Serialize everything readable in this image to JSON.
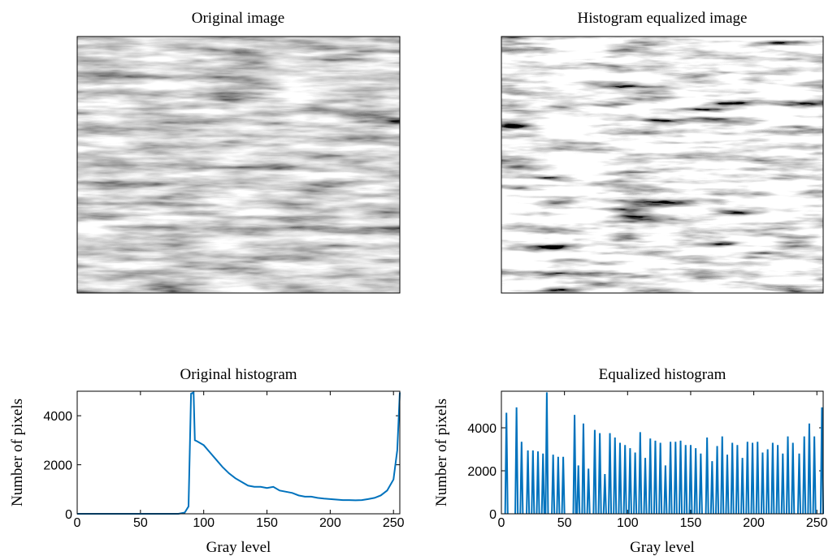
{
  "images": [
    {
      "title": "Original image"
    },
    {
      "title": "Histogram equalized image"
    }
  ],
  "chart_data": [
    {
      "type": "line",
      "title": "Original histogram",
      "xlabel": "Gray level",
      "ylabel": "Number of pixels",
      "xlim": [
        0,
        255
      ],
      "ylim": [
        0,
        5000
      ],
      "xticks": [
        0,
        50,
        100,
        150,
        200,
        250
      ],
      "yticks": [
        0,
        2000,
        4000
      ],
      "series": [
        {
          "color": "#0072bd",
          "x": [
            0,
            20,
            40,
            60,
            80,
            85,
            88,
            90,
            92,
            93,
            95,
            100,
            105,
            110,
            115,
            120,
            125,
            130,
            135,
            140,
            145,
            150,
            155,
            160,
            165,
            170,
            175,
            180,
            185,
            190,
            195,
            200,
            205,
            210,
            215,
            220,
            225,
            230,
            235,
            240,
            245,
            250,
            253,
            255
          ],
          "values": [
            0,
            0,
            0,
            0,
            0,
            50,
            300,
            4900,
            4950,
            3000,
            2950,
            2800,
            2500,
            2200,
            1900,
            1650,
            1450,
            1300,
            1150,
            1100,
            1100,
            1050,
            1100,
            950,
            900,
            850,
            750,
            700,
            700,
            650,
            620,
            600,
            580,
            560,
            560,
            550,
            560,
            600,
            650,
            750,
            950,
            1400,
            2600,
            4950
          ]
        }
      ]
    },
    {
      "type": "spikes",
      "title": "Equalized histogram",
      "xlabel": "Gray level",
      "ylabel": "Number of pixels",
      "xlim": [
        0,
        255
      ],
      "ylim": [
        0,
        5700
      ],
      "xticks": [
        0,
        50,
        100,
        150,
        200,
        250
      ],
      "yticks": [
        0,
        2000,
        4000
      ],
      "series": [
        {
          "color": "#0072bd",
          "x": [
            4,
            12,
            16,
            21,
            25,
            29,
            33,
            36,
            41,
            45,
            49,
            58,
            61,
            65,
            69,
            74,
            78,
            82,
            86,
            90,
            94,
            98,
            102,
            106,
            110,
            114,
            118,
            122,
            126,
            130,
            134,
            138,
            142,
            146,
            150,
            154,
            158,
            163,
            167,
            171,
            175,
            179,
            183,
            187,
            191,
            195,
            199,
            203,
            207,
            211,
            215,
            219,
            223,
            227,
            231,
            236,
            240,
            244,
            248,
            254
          ],
          "values": [
            4700,
            4950,
            3350,
            2950,
            2950,
            2900,
            2800,
            5650,
            2750,
            2650,
            2650,
            4600,
            2250,
            4200,
            2100,
            3900,
            3750,
            1850,
            3750,
            3550,
            3300,
            3200,
            3050,
            2850,
            3800,
            2600,
            3500,
            3400,
            3300,
            2250,
            3350,
            3350,
            3400,
            3200,
            3200,
            3050,
            2800,
            3550,
            2450,
            3150,
            3600,
            2750,
            3300,
            3200,
            2600,
            3350,
            3300,
            3350,
            2850,
            3000,
            3300,
            3200,
            2800,
            3600,
            3300,
            2800,
            3600,
            4200,
            3600,
            4950
          ]
        }
      ]
    }
  ]
}
